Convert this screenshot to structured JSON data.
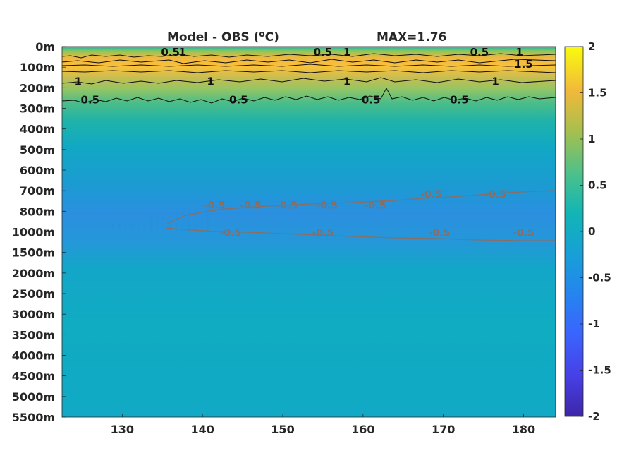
{
  "chart_data": {
    "type": "heatmap",
    "title": "Model - OBS (",
    "title_unit_super": "o",
    "title_unit_tail": "C)",
    "max_label": "MAX=1.76",
    "x_ticks": [
      "130",
      "140",
      "150",
      "160",
      "170",
      "180"
    ],
    "x_tick_values": [
      130,
      140,
      150,
      160,
      170,
      180
    ],
    "xlim": [
      122.5,
      184
    ],
    "y_ticks": [
      "0m",
      "100m",
      "200m",
      "300m",
      "400m",
      "500m",
      "600m",
      "700m",
      "800m",
      "1000m",
      "1500m",
      "2000m",
      "2500m",
      "3000m",
      "3500m",
      "4000m",
      "4500m",
      "5000m",
      "5500m"
    ],
    "colorbar": {
      "colormap": "parula",
      "range": [
        -2,
        2
      ],
      "ticks": [
        "2",
        "1.5",
        "1",
        "0.5",
        "0",
        "-0.5",
        "-1",
        "-1.5",
        "-2"
      ],
      "tick_values": [
        2,
        1.5,
        1,
        0.5,
        0,
        -0.5,
        -1,
        -1.5,
        -2
      ]
    },
    "contours": {
      "positive_color": "#000000",
      "negative_color": "#8a6d63",
      "labels": [
        {
          "text": "0.5",
          "lon": 136.0,
          "depth": "0m"
        },
        {
          "text": "1",
          "lon": 137.5,
          "depth": "0m"
        },
        {
          "text": "0.5",
          "lon": 155.0,
          "depth": "0m"
        },
        {
          "text": "1",
          "lon": 158.0,
          "depth": "0m"
        },
        {
          "text": "0.5",
          "lon": 174.5,
          "depth": "0m"
        },
        {
          "text": "1",
          "lon": 179.5,
          "depth": "0m"
        },
        {
          "text": "1.5",
          "lon": 180.0,
          "depth": "100m"
        },
        {
          "text": "1",
          "lon": 124.5,
          "depth": "200m"
        },
        {
          "text": "1",
          "lon": 141.0,
          "depth": "200m"
        },
        {
          "text": "1",
          "lon": 158.0,
          "depth": "200m"
        },
        {
          "text": "1",
          "lon": 176.5,
          "depth": "200m"
        },
        {
          "text": "0.5",
          "lon": 126.0,
          "depth": "300m"
        },
        {
          "text": "0.5",
          "lon": 144.5,
          "depth": "300m"
        },
        {
          "text": "0.5",
          "lon": 161.0,
          "depth": "300m"
        },
        {
          "text": "0.5",
          "lon": 172.0,
          "depth": "300m"
        },
        {
          "text": "-0.5",
          "lon": 141.5,
          "depth": "800m"
        },
        {
          "text": "-0.5",
          "lon": 146.0,
          "depth": "800m"
        },
        {
          "text": "-0.5",
          "lon": 150.5,
          "depth": "800m"
        },
        {
          "text": "-0.5",
          "lon": 155.5,
          "depth": "800m"
        },
        {
          "text": "-0.5",
          "lon": 161.5,
          "depth": "800m"
        },
        {
          "text": "-0.5",
          "lon": 168.5,
          "depth": "700m"
        },
        {
          "text": "-0.5",
          "lon": 176.5,
          "depth": "700m"
        },
        {
          "text": "-0.5",
          "lon": 143.5,
          "depth": "1000m"
        },
        {
          "text": "-0.5",
          "lon": 155.0,
          "depth": "1000m"
        },
        {
          "text": "-0.5",
          "lon": 169.5,
          "depth": "1000m"
        },
        {
          "text": "-0.5",
          "lon": 180.0,
          "depth": "1000m"
        }
      ]
    },
    "field_profile_by_depth_level": [
      {
        "depth": "0m",
        "value": 0.3
      },
      {
        "depth": "50m",
        "value": 1.05
      },
      {
        "depth": "100m",
        "value": 1.4
      },
      {
        "depth": "200m",
        "value": 1.0
      },
      {
        "depth": "300m",
        "value": 0.45
      },
      {
        "depth": "400m",
        "value": 0.15
      },
      {
        "depth": "500m",
        "value": 0.0
      },
      {
        "depth": "600m",
        "value": -0.2
      },
      {
        "depth": "700m",
        "value": -0.35
      },
      {
        "depth": "800m",
        "value": -0.5
      },
      {
        "depth": "1000m",
        "value": -0.55
      },
      {
        "depth": "1500m",
        "value": -0.25
      },
      {
        "depth": "2000m",
        "value": -0.15
      },
      {
        "depth": "3000m",
        "value": -0.12
      },
      {
        "depth": "5500m",
        "value": -0.12
      }
    ]
  }
}
